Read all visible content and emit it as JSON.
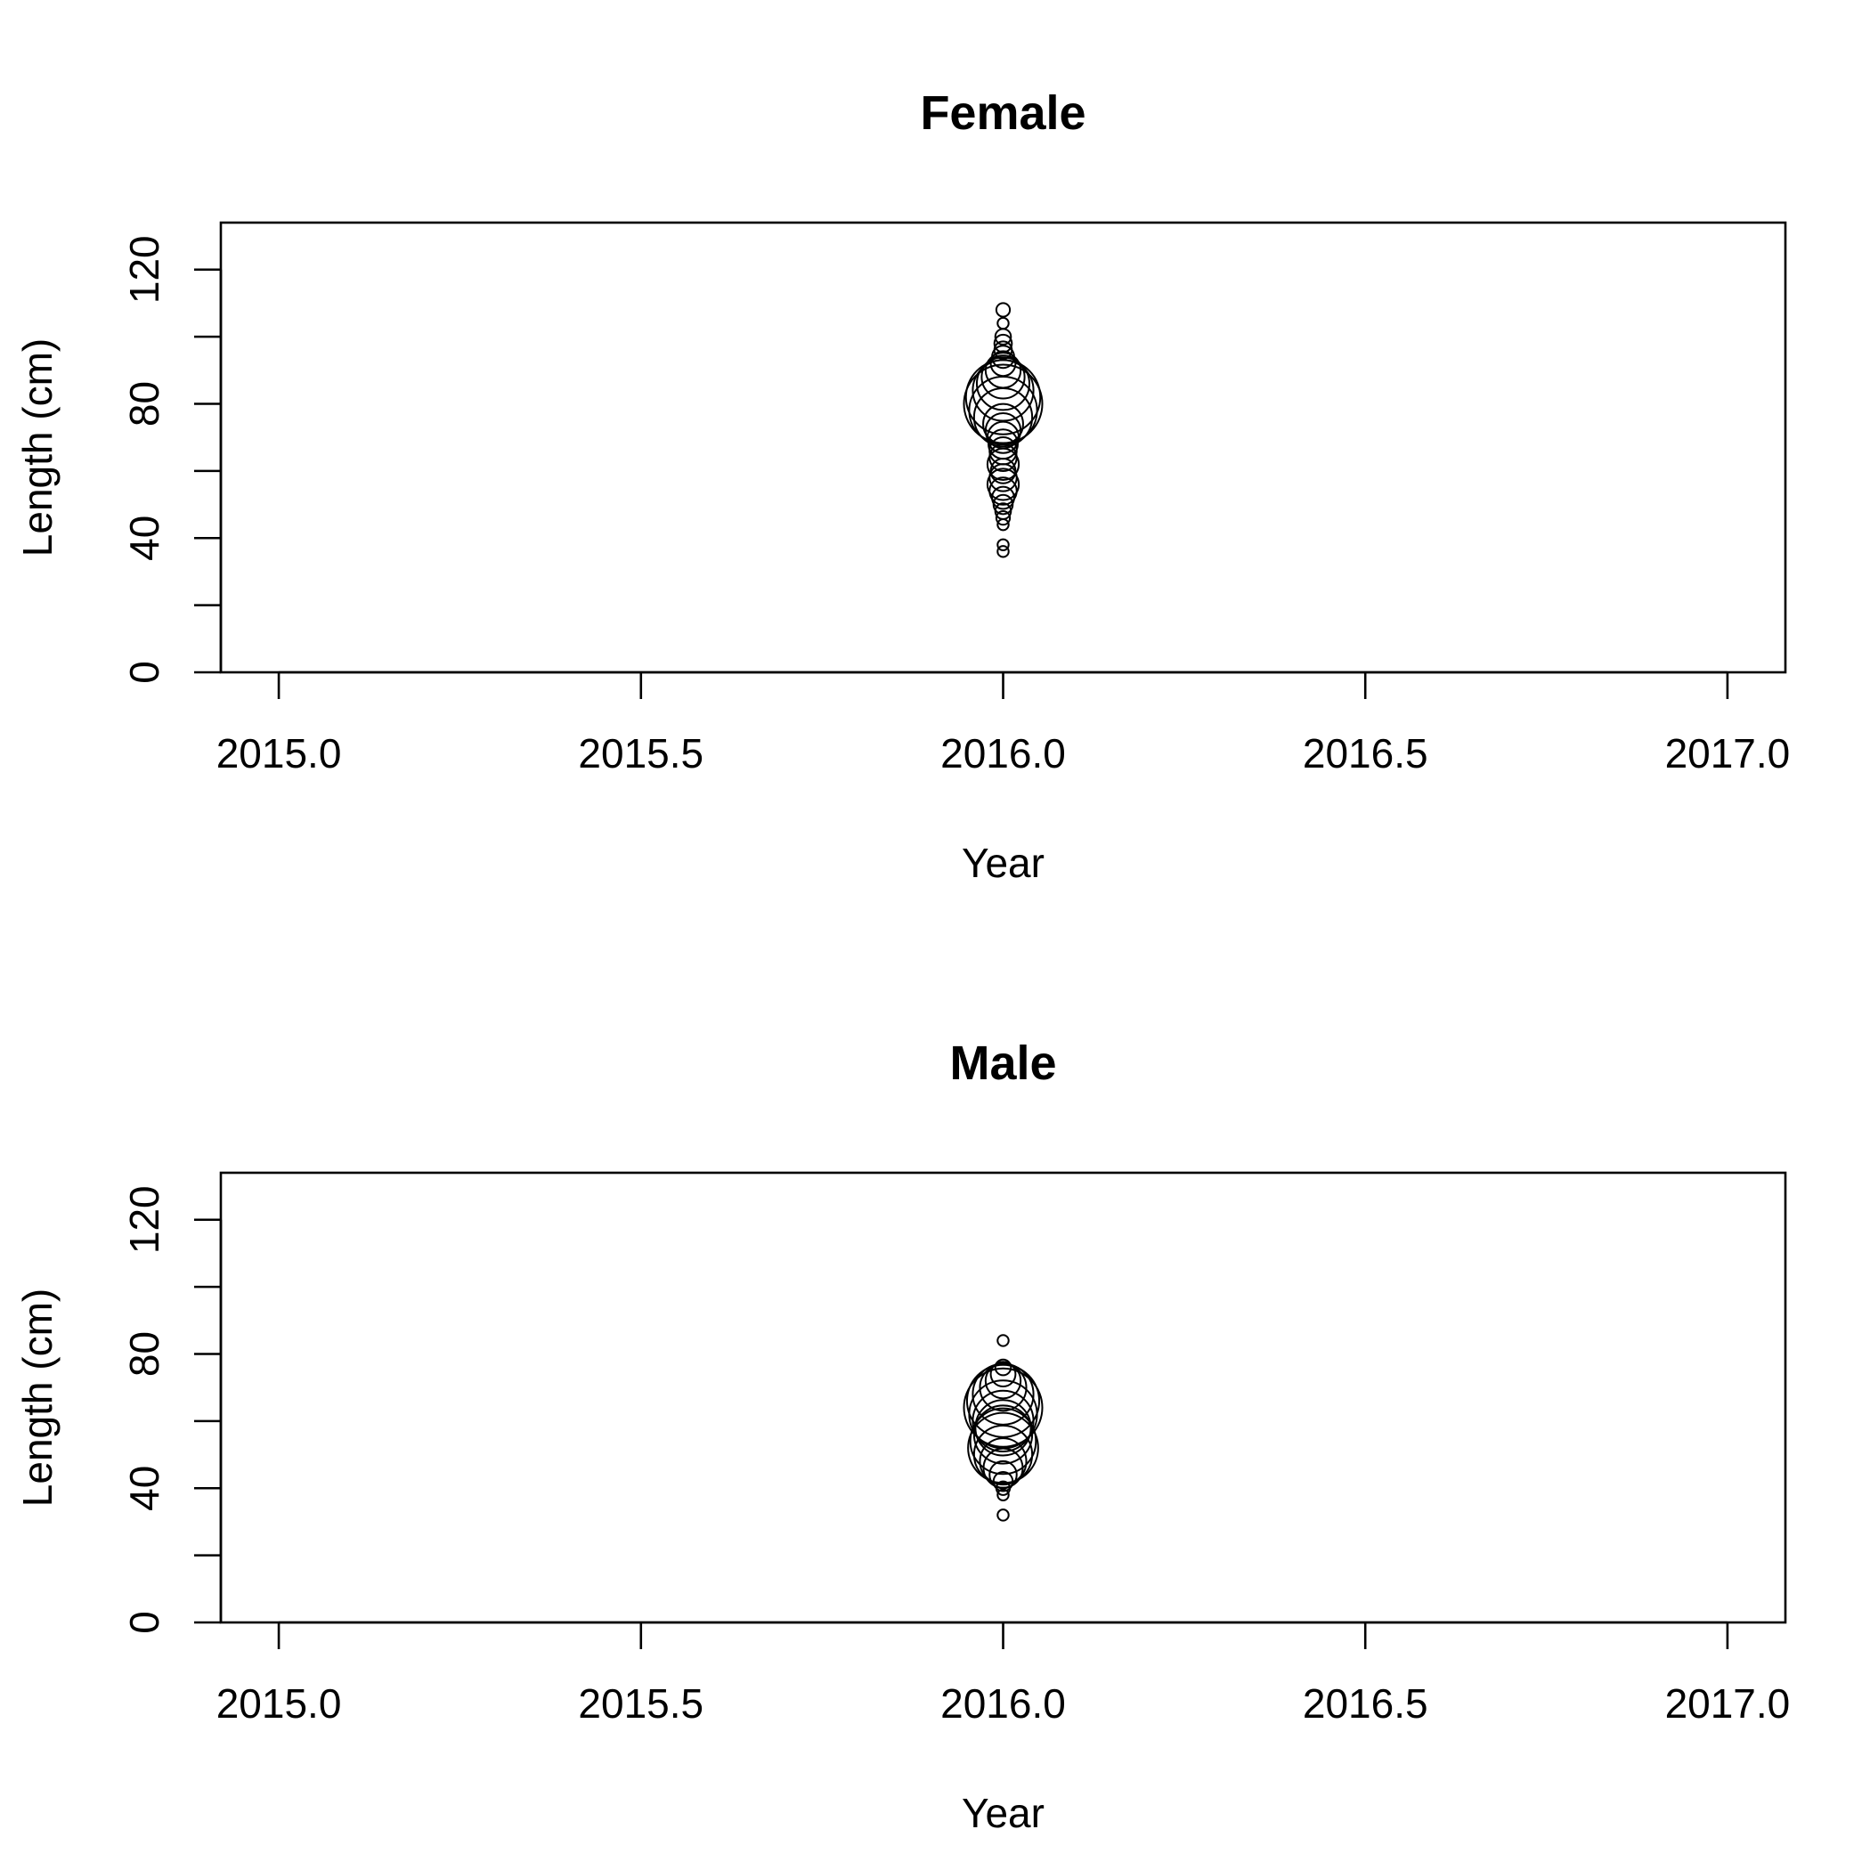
{
  "chart_data": [
    {
      "type": "scatter",
      "title": "Female",
      "xlabel": "Year",
      "ylabel": "Length (cm)",
      "xlim": [
        2014.92,
        2017.08
      ],
      "ylim": [
        0,
        134
      ],
      "xticks": [
        2015.0,
        2015.5,
        2016.0,
        2016.5,
        2017.0
      ],
      "xtick_labels": [
        "2015.0",
        "2015.5",
        "2016.0",
        "2016.5",
        "2017.0"
      ],
      "yticks": [
        0,
        20,
        40,
        60,
        80,
        100,
        120
      ],
      "ytick_labels": [
        "0",
        "",
        "40",
        "",
        "80",
        "",
        "120"
      ],
      "grid": false,
      "point_style": "open circles sized by proportion",
      "points": [
        {
          "x": 2016.0,
          "y": 36,
          "size": 0.02
        },
        {
          "x": 2016.0,
          "y": 38,
          "size": 0.02
        },
        {
          "x": 2016.0,
          "y": 44,
          "size": 0.02
        },
        {
          "x": 2016.0,
          "y": 46,
          "size": 0.03
        },
        {
          "x": 2016.0,
          "y": 48,
          "size": 0.04
        },
        {
          "x": 2016.0,
          "y": 50,
          "size": 0.06
        },
        {
          "x": 2016.0,
          "y": 52,
          "size": 0.08
        },
        {
          "x": 2016.0,
          "y": 54,
          "size": 0.12
        },
        {
          "x": 2016.0,
          "y": 56,
          "size": 0.16
        },
        {
          "x": 2016.0,
          "y": 58,
          "size": 0.12
        },
        {
          "x": 2016.0,
          "y": 60,
          "size": 0.1
        },
        {
          "x": 2016.0,
          "y": 62,
          "size": 0.16
        },
        {
          "x": 2016.0,
          "y": 64,
          "size": 0.12
        },
        {
          "x": 2016.0,
          "y": 66,
          "size": 0.12
        },
        {
          "x": 2016.0,
          "y": 68,
          "size": 0.14
        },
        {
          "x": 2016.0,
          "y": 70,
          "size": 0.16
        },
        {
          "x": 2016.0,
          "y": 72,
          "size": 0.2
        },
        {
          "x": 2016.0,
          "y": 74,
          "size": 0.26
        },
        {
          "x": 2016.0,
          "y": 76,
          "size": 0.55
        },
        {
          "x": 2016.0,
          "y": 78,
          "size": 0.75
        },
        {
          "x": 2016.0,
          "y": 80,
          "size": 1.0
        },
        {
          "x": 2016.0,
          "y": 82,
          "size": 0.9
        },
        {
          "x": 2016.0,
          "y": 84,
          "size": 0.6
        },
        {
          "x": 2016.0,
          "y": 86,
          "size": 0.45
        },
        {
          "x": 2016.0,
          "y": 88,
          "size": 0.3
        },
        {
          "x": 2016.0,
          "y": 90,
          "size": 0.2
        },
        {
          "x": 2016.0,
          "y": 92,
          "size": 0.1
        },
        {
          "x": 2016.0,
          "y": 94,
          "size": 0.08
        },
        {
          "x": 2016.0,
          "y": 96,
          "size": 0.05
        },
        {
          "x": 2016.0,
          "y": 98,
          "size": 0.05
        },
        {
          "x": 2016.0,
          "y": 100,
          "size": 0.04
        },
        {
          "x": 2016.0,
          "y": 104,
          "size": 0.02
        },
        {
          "x": 2016.0,
          "y": 108,
          "size": 0.03
        }
      ]
    },
    {
      "type": "scatter",
      "title": "Male",
      "xlabel": "Year",
      "ylabel": "Length (cm)",
      "xlim": [
        2014.92,
        2017.08
      ],
      "ylim": [
        0,
        134
      ],
      "xticks": [
        2015.0,
        2015.5,
        2016.0,
        2016.5,
        2017.0
      ],
      "xtick_labels": [
        "2015.0",
        "2015.5",
        "2016.0",
        "2016.5",
        "2017.0"
      ],
      "yticks": [
        0,
        20,
        40,
        60,
        80,
        100,
        120
      ],
      "ytick_labels": [
        "0",
        "",
        "40",
        "",
        "80",
        "",
        "120"
      ],
      "grid": false,
      "point_style": "open circles sized by proportion",
      "points": [
        {
          "x": 2016.0,
          "y": 32,
          "size": 0.02
        },
        {
          "x": 2016.0,
          "y": 38,
          "size": 0.02
        },
        {
          "x": 2016.0,
          "y": 40,
          "size": 0.03
        },
        {
          "x": 2016.0,
          "y": 42,
          "size": 0.06
        },
        {
          "x": 2016.0,
          "y": 44,
          "size": 0.12
        },
        {
          "x": 2016.0,
          "y": 46,
          "size": 0.25
        },
        {
          "x": 2016.0,
          "y": 48,
          "size": 0.35
        },
        {
          "x": 2016.0,
          "y": 50,
          "size": 0.55
        },
        {
          "x": 2016.0,
          "y": 52,
          "size": 0.8
        },
        {
          "x": 2016.0,
          "y": 54,
          "size": 0.7
        },
        {
          "x": 2016.0,
          "y": 56,
          "size": 0.55
        },
        {
          "x": 2016.0,
          "y": 58,
          "size": 0.5
        },
        {
          "x": 2016.0,
          "y": 60,
          "size": 0.6
        },
        {
          "x": 2016.0,
          "y": 62,
          "size": 0.75
        },
        {
          "x": 2016.0,
          "y": 64,
          "size": 1.0
        },
        {
          "x": 2016.0,
          "y": 66,
          "size": 0.85
        },
        {
          "x": 2016.0,
          "y": 68,
          "size": 0.6
        },
        {
          "x": 2016.0,
          "y": 70,
          "size": 0.35
        },
        {
          "x": 2016.0,
          "y": 72,
          "size": 0.2
        },
        {
          "x": 2016.0,
          "y": 74,
          "size": 0.1
        },
        {
          "x": 2016.0,
          "y": 76,
          "size": 0.04
        },
        {
          "x": 2016.0,
          "y": 84,
          "size": 0.02
        }
      ]
    }
  ]
}
